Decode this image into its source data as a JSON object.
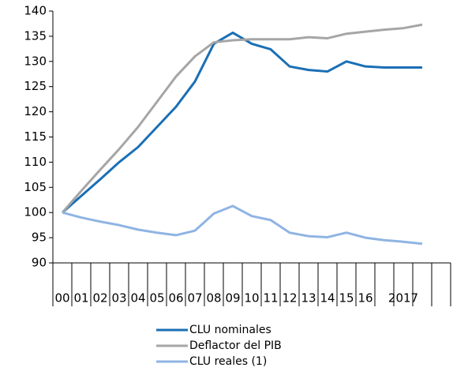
{
  "chart_data": {
    "type": "line",
    "categories": [
      "00",
      "01",
      "02",
      "03",
      "04",
      "05",
      "06",
      "07",
      "08",
      "09",
      "10",
      "11",
      "12",
      "13",
      "14",
      "15",
      "16",
      null,
      "2017",
      null,
      null
    ],
    "series": [
      {
        "name": "CLU nominales",
        "color": "#1a6fb5",
        "values": [
          100,
          103.3,
          106.6,
          110,
          113,
          117,
          121,
          126,
          133.5,
          135.7,
          133.5,
          132.4,
          129,
          128.3,
          128,
          130,
          129,
          128.8,
          128.8,
          128.8,
          null
        ]
      },
      {
        "name": "Deflactor del PIB",
        "color": "#a6a6a6",
        "values": [
          100,
          104.3,
          108.5,
          112.6,
          117,
          122,
          127,
          131,
          133.8,
          134.2,
          134.4,
          134.4,
          134.4,
          134.8,
          134.6,
          135.5,
          135.9,
          136.3,
          136.6,
          137.3,
          null
        ]
      },
      {
        "name": "CLU reales (1)",
        "color": "#8fb4e3",
        "values": [
          100,
          99,
          98.2,
          97.5,
          96.6,
          96,
          95.5,
          96.4,
          99.8,
          101.3,
          99.3,
          98.5,
          96,
          95.3,
          95.1,
          96,
          95,
          94.5,
          94.2,
          93.8,
          null
        ]
      }
    ],
    "ylim": [
      90,
      140
    ],
    "yticks": [
      90,
      95,
      100,
      105,
      110,
      115,
      120,
      125,
      130,
      135,
      140
    ]
  }
}
